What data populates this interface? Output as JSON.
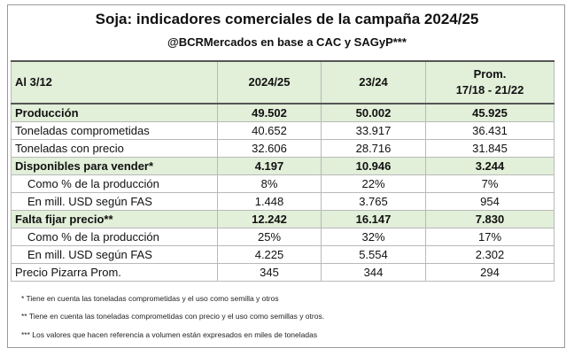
{
  "header": {
    "title": "Soja: indicadores comerciales de la campaña 2024/25",
    "subtitle": "@BCRMercados en base a CAC y SAGyP***"
  },
  "table": {
    "columns": [
      "Al 3/12",
      "2024/25",
      "23/24",
      [
        "Prom.",
        "17/18 - 21/22"
      ]
    ],
    "rows": [
      [
        "Producción",
        "49.502",
        "50.002",
        "45.925"
      ],
      [
        "Toneladas comprometidas",
        "40.652",
        "33.917",
        "36.431"
      ],
      [
        "Toneladas con precio",
        "32.606",
        "28.716",
        "31.845"
      ],
      [
        "Disponibles para vender*",
        "4.197",
        "10.946",
        "3.244"
      ],
      [
        "Como % de la producción",
        "8%",
        "22%",
        "7%"
      ],
      [
        "En mill. USD según FAS",
        "1.448",
        "3.765",
        "954"
      ],
      [
        "Falta fijar precio**",
        "12.242",
        "16.147",
        "7.830"
      ],
      [
        "Como % de la producción",
        "25%",
        "32%",
        "17%"
      ],
      [
        "En mill. USD según FAS",
        "4.225",
        "5.554",
        "2.302"
      ],
      [
        "Precio Pizarra Prom.",
        "345",
        "344",
        "294"
      ]
    ]
  },
  "footnotes": [
    "* Tiene en cuenta las toneladas comprometidas y el uso como semilla y otros",
    "** Tiene en cuenta las toneladas comprometidas con precio y el uso como semillas y otros.",
    "*** Los valores que hacen referencia a volumen están expresados en miles de toneladas"
  ]
}
